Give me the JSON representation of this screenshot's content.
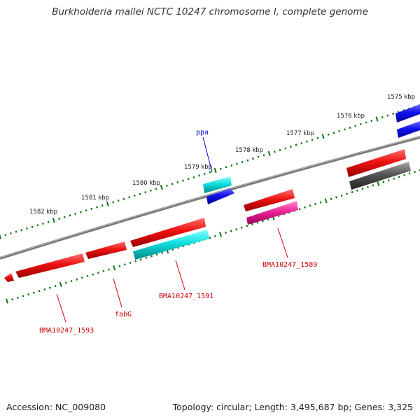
{
  "title": "Burkholderia mallei NCTC 10247 chromosome I, complete genome",
  "accession": "Accession: NC_009080",
  "summary": "Topology: circular; Length: 3,495,687 bp; Genes: 3,325",
  "ruler": {
    "labels": [
      "1575 kbp",
      "1576 kbp",
      "1577 kbp",
      "1578 kbp",
      "1579 kbp",
      "1580 kbp",
      "1581 kbp",
      "1582 kbp"
    ]
  },
  "gene_labels": [
    {
      "text": "ppa",
      "color": "#0000cc"
    },
    {
      "text": "BMA10247_1589",
      "color": "#cc0000"
    },
    {
      "text": "BMA10247_1591",
      "color": "#cc0000"
    },
    {
      "text": "fabG",
      "color": "#cc0000"
    },
    {
      "text": "BMA10247_1593",
      "color": "#cc0000"
    }
  ],
  "colors": {
    "cds_red": "#ee1111",
    "cds_blue": "#1111ee",
    "cds_cyan": "#11dddd",
    "cds_magenta": "#ee2299",
    "cds_grey": "#555555",
    "backbone": "#777777",
    "ruler_dots": "#117711"
  }
}
